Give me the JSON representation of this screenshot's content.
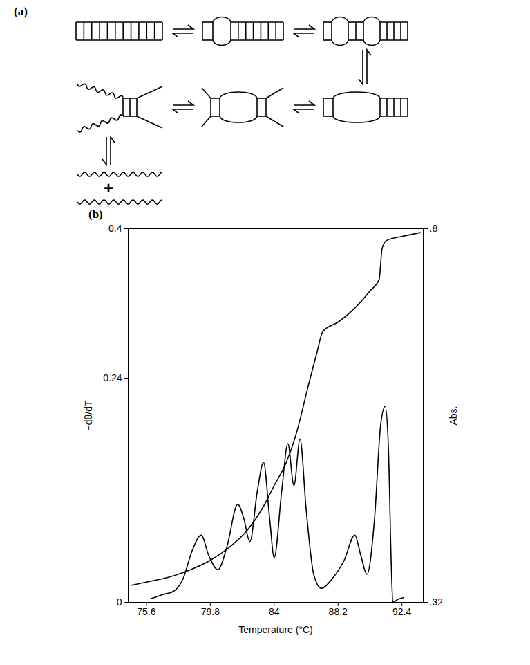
{
  "diagram": {
    "panel_label": "(a)",
    "plus": "+"
  },
  "chart_data": {
    "type": "line",
    "panel_label": "(b)",
    "x_label": "Temperature (°C)",
    "y_label": "−dθ/dT",
    "y2_label": "Abs.",
    "xlim": [
      74.4,
      93.8
    ],
    "xticks": [
      75.6,
      79.8,
      84,
      88.2,
      92.4
    ],
    "ylim": [
      0,
      0.4
    ],
    "yticks": [
      0,
      0.24,
      0.4
    ],
    "y2lim": [
      0.32,
      0.8
    ],
    "y2ticks": [
      {
        "value": 0.32,
        "label": ".32"
      },
      {
        "value": 0.8,
        "label": ".8"
      }
    ],
    "series": [
      {
        "axis": "y",
        "color": "#000000",
        "x": [
          75.9,
          76.6,
          77.4,
          78.0,
          78.6,
          79.2,
          79.7,
          80.3,
          80.9,
          81.6,
          82.0,
          82.4,
          82.9,
          83.3,
          83.7,
          84.0,
          84.5,
          84.9,
          85.3,
          85.7,
          86.1,
          86.6,
          87.1,
          87.8,
          88.6,
          89.3,
          89.7,
          90.1,
          90.6,
          91.0,
          91.3,
          91.5,
          91.7,
          91.8,
          92.1,
          92.5
        ],
        "values": [
          0.004,
          0.008,
          0.012,
          0.025,
          0.055,
          0.072,
          0.05,
          0.035,
          0.06,
          0.105,
          0.09,
          0.065,
          0.12,
          0.15,
          0.09,
          0.048,
          0.12,
          0.17,
          0.125,
          0.175,
          0.1,
          0.03,
          0.015,
          0.025,
          0.045,
          0.072,
          0.05,
          0.03,
          0.09,
          0.19,
          0.21,
          0.17,
          0.04,
          0,
          0.003,
          0.005
        ]
      },
      {
        "axis": "y2",
        "color": "#000000",
        "x": [
          74.6,
          75.6,
          77,
          78.5,
          79.8,
          81,
          82.2,
          83.2,
          84,
          84.8,
          85.5,
          86.2,
          86.8,
          87.2,
          88.2,
          89.3,
          90.3,
          90.9,
          91.1,
          91.4,
          92.4,
          93.6
        ],
        "values": [
          0.342,
          0.346,
          0.352,
          0.362,
          0.374,
          0.39,
          0.412,
          0.44,
          0.47,
          0.5,
          0.54,
          0.595,
          0.64,
          0.668,
          0.68,
          0.698,
          0.72,
          0.735,
          0.775,
          0.785,
          0.79,
          0.795
        ]
      }
    ]
  }
}
